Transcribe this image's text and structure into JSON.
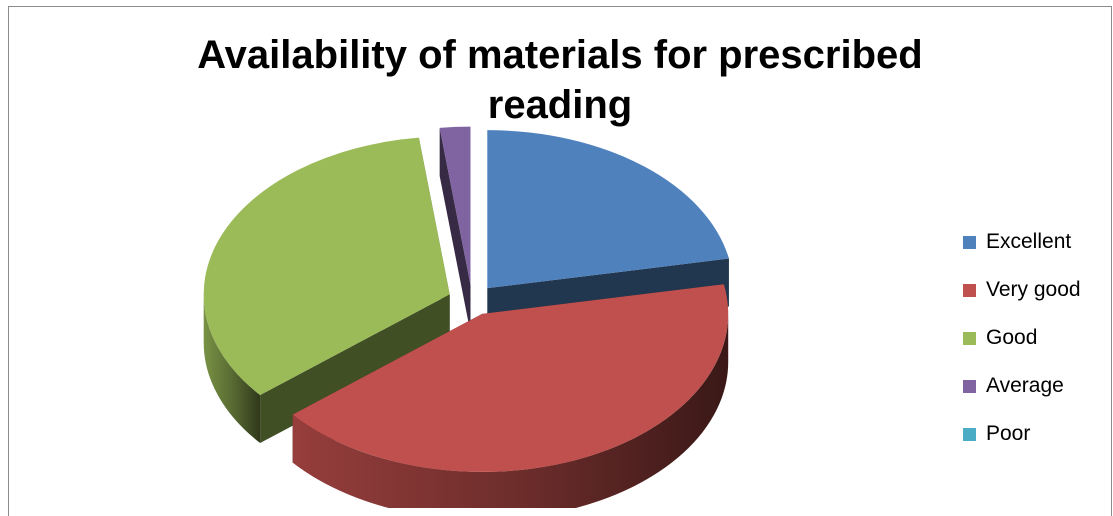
{
  "chart_data": {
    "type": "pie",
    "title": "Availability of materials for prescribed reading",
    "categories": [
      "Excellent",
      "Very good",
      "Good",
      "Average",
      "Poor"
    ],
    "values": [
      22,
      42,
      34,
      2,
      0
    ],
    "colors": [
      "#4f81bd",
      "#c0504d",
      "#9bbb59",
      "#8064a2",
      "#4bacc6"
    ],
    "exploded": true,
    "three_d": true,
    "legend_position": "right"
  }
}
